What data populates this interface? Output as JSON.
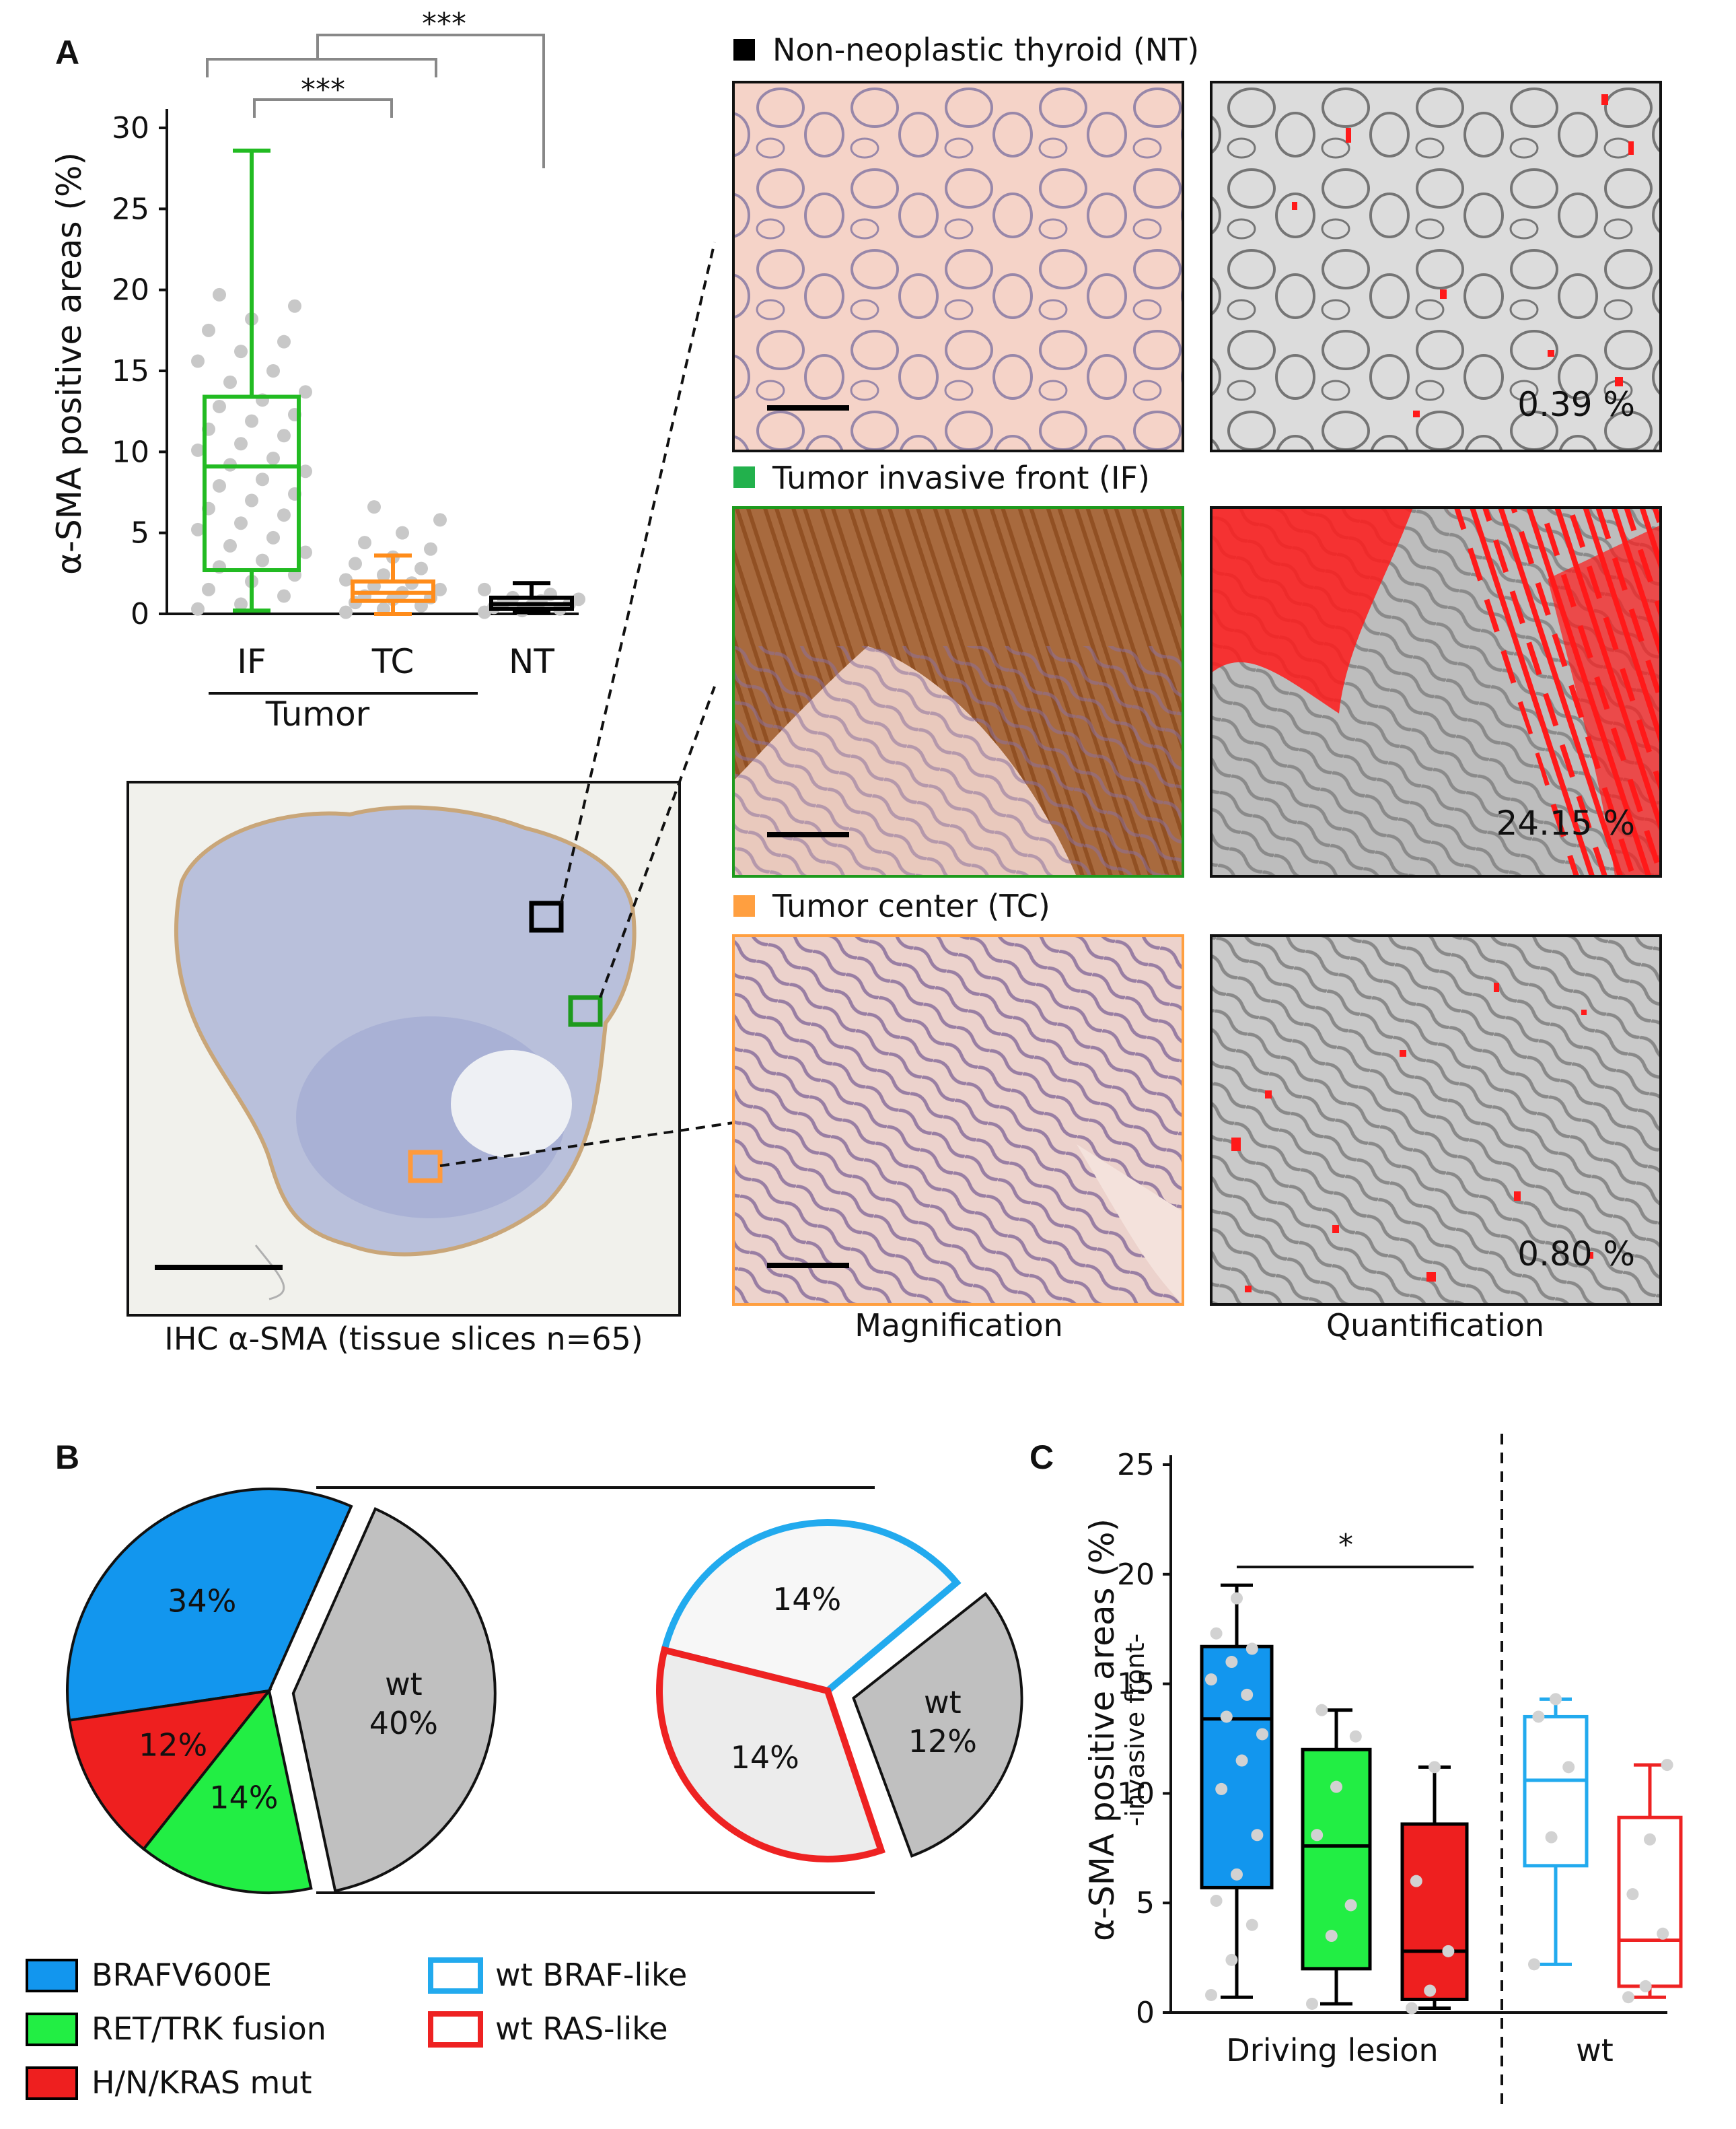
{
  "panels": {
    "A": {
      "letter": "A",
      "boxplot": {
        "ylabel": "α-SMA positive areas (%)",
        "group_label": "Tumor",
        "significance": [
          "***",
          "***"
        ]
      },
      "overview_caption": "IHC α-SMA (tissue slices n=65)",
      "column_captions": [
        "Magnification",
        "Quantification"
      ],
      "rows": [
        {
          "label": "Non-neoplastic thyroid (NT)",
          "color": "#000000",
          "percent": "0.39 %"
        },
        {
          "label": "Tumor invasive front (IF)",
          "color": "#22b14c",
          "percent": "24.15 %"
        },
        {
          "label": "Tumor center (TC)",
          "color": "#ff9f40",
          "percent": "0.80 %"
        }
      ]
    },
    "B": {
      "letter": "B",
      "legend": [
        {
          "label": "BRAFV600E",
          "fill": "#1296ee",
          "stroke": "#000000"
        },
        {
          "label": "wt BRAF-like",
          "fill": "#ffffff",
          "stroke": "#22aaee"
        },
        {
          "label": "RET/TRK fusion",
          "fill": "#22ee44",
          "stroke": "#000000"
        },
        {
          "label": "wt RAS-like",
          "fill": "#ffffff",
          "stroke": "#ee2222"
        },
        {
          "label": "H/N/KRAS mut",
          "fill": "#ee1f1f",
          "stroke": "#000000"
        }
      ]
    },
    "C": {
      "letter": "C",
      "ylabel": "α-SMA positive areas (%)",
      "ylabel_sub": "-invasive front-",
      "significance": "*",
      "group_labels": [
        "Driving lesion",
        "wt"
      ]
    }
  },
  "chart_data": [
    {
      "type": "box",
      "panel": "A",
      "categories": [
        "IF",
        "TC",
        "NT"
      ],
      "ylabel": "α-SMA positive areas (%)",
      "ylim": [
        0,
        30
      ],
      "yticks": [
        0,
        5,
        10,
        15,
        20,
        25,
        30
      ],
      "colors": [
        "#22bb22",
        "#ff8c1a",
        "#000000"
      ],
      "boxes": [
        {
          "name": "IF",
          "min": 0.2,
          "q1": 2.7,
          "median": 9.1,
          "q3": 13.4,
          "max": 28.6,
          "points": [
            0.3,
            0.6,
            1.1,
            1.5,
            2.0,
            2.4,
            2.9,
            3.3,
            3.8,
            4.2,
            4.7,
            5.2,
            5.6,
            6.1,
            6.5,
            7.0,
            7.4,
            7.9,
            8.3,
            8.8,
            9.2,
            9.6,
            10.1,
            10.5,
            11.0,
            11.4,
            11.9,
            12.3,
            12.8,
            13.2,
            13.7,
            14.3,
            15.0,
            15.6,
            16.2,
            16.8,
            17.5,
            18.2,
            19.0,
            19.7
          ]
        },
        {
          "name": "TC",
          "min": 0.0,
          "q1": 0.8,
          "median": 1.3,
          "q3": 2.0,
          "max": 3.6,
          "points": [
            0.1,
            0.3,
            0.5,
            0.7,
            0.9,
            1.0,
            1.1,
            1.3,
            1.5,
            1.7,
            1.9,
            2.1,
            2.4,
            2.8,
            3.1,
            3.5,
            4.0,
            4.4,
            5.0,
            5.8,
            6.6
          ]
        },
        {
          "name": "NT",
          "min": 0.1,
          "q1": 0.3,
          "median": 0.6,
          "q3": 1.0,
          "max": 1.9,
          "points": [
            0.1,
            0.2,
            0.3,
            0.4,
            0.5,
            0.6,
            0.7,
            0.8,
            0.9,
            1.0,
            1.2,
            1.5
          ]
        }
      ]
    },
    {
      "type": "pie",
      "panel": "B",
      "slices": [
        {
          "label": "34%",
          "category": "BRAFV600E",
          "value": 34,
          "color": "#1296ee"
        },
        {
          "label": "14%",
          "category": "RET/TRK fusion",
          "value": 14,
          "color": "#22ee44"
        },
        {
          "label": "12%",
          "category": "H/N/KRAS mut",
          "value": 12,
          "color": "#ee1f1f"
        },
        {
          "label": "wt\n40%",
          "category": "wt",
          "value": 40,
          "color": "#c0c0c0"
        }
      ],
      "breakdown_of_wt": [
        {
          "label": "14%",
          "category": "wt BRAF-like",
          "value": 14,
          "color": "#22aaee"
        },
        {
          "label": "14%",
          "category": "wt RAS-like",
          "value": 14,
          "color": "#ee2222"
        },
        {
          "label": "wt\n12%",
          "category": "wt",
          "value": 12,
          "color": "#c0c0c0"
        }
      ]
    },
    {
      "type": "box",
      "panel": "C",
      "ylabel": "α-SMA positive areas (%)",
      "ylim": [
        0,
        25
      ],
      "yticks": [
        0,
        5,
        10,
        15,
        20,
        25
      ],
      "groups": [
        "Driving lesion",
        "wt"
      ],
      "boxes": [
        {
          "name": "BRAFV600E",
          "group": "Driving lesion",
          "min": 0.7,
          "q1": 5.7,
          "median": 13.4,
          "q3": 16.7,
          "max": 19.5,
          "fill": "#1296ee",
          "stroke": "#000000",
          "points": [
            0.8,
            2.4,
            4.0,
            5.1,
            6.3,
            8.1,
            10.2,
            11.5,
            12.7,
            13.5,
            14.5,
            15.2,
            16.0,
            16.6,
            17.3,
            18.9
          ]
        },
        {
          "name": "RET/TRK fusion",
          "group": "Driving lesion",
          "min": 0.4,
          "q1": 2.0,
          "median": 7.6,
          "q3": 12.0,
          "max": 13.8,
          "fill": "#22ee44",
          "stroke": "#000000",
          "points": [
            0.4,
            3.5,
            4.9,
            8.1,
            10.3,
            12.6,
            13.8
          ]
        },
        {
          "name": "H/N/KRAS mut",
          "group": "Driving lesion",
          "min": 0.2,
          "q1": 0.6,
          "median": 2.8,
          "q3": 8.6,
          "max": 11.2,
          "fill": "#ee1f1f",
          "stroke": "#000000",
          "points": [
            0.2,
            1.0,
            2.8,
            6.0,
            11.2
          ]
        },
        {
          "name": "wt BRAF-like",
          "group": "wt",
          "min": 2.2,
          "q1": 6.7,
          "median": 10.6,
          "q3": 13.5,
          "max": 14.3,
          "fill": "#ffffff",
          "stroke": "#22aaee",
          "points": [
            2.2,
            8.0,
            11.2,
            13.5,
            14.3
          ]
        },
        {
          "name": "wt RAS-like",
          "group": "wt",
          "min": 0.7,
          "q1": 1.2,
          "median": 3.3,
          "q3": 8.9,
          "max": 11.3,
          "fill": "#ffffff",
          "stroke": "#ee2222",
          "points": [
            0.7,
            1.2,
            3.6,
            5.4,
            7.9,
            11.3
          ]
        }
      ]
    }
  ]
}
